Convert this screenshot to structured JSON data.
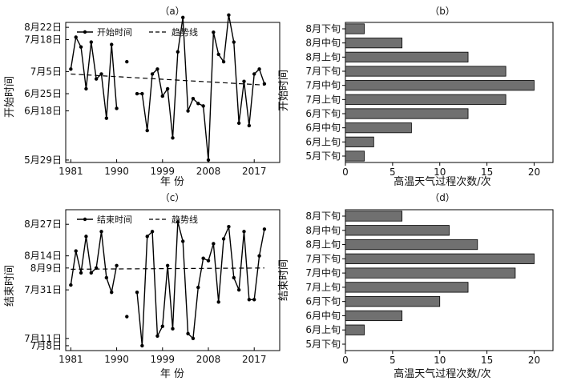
{
  "chart_data": [
    {
      "id": "a",
      "type": "line",
      "title": "（a）",
      "xlabel": "年  份",
      "ylabel": "开始时间",
      "xlim": [
        1980,
        2022
      ],
      "xticks": [
        1981,
        1990,
        1999,
        2008,
        2017
      ],
      "ylim": [
        149,
        206
      ],
      "yticks": [
        150,
        170,
        177,
        186,
        199,
        204
      ],
      "yticklabels": [
        "5月29日",
        "6月18日",
        "6月25日",
        "7月5日",
        "7月18日",
        "8月22日"
      ],
      "legend": {
        "placement": "top-left",
        "entries": [
          "开始时间",
          "趋势线"
        ]
      },
      "series": [
        {
          "name": "开始时间",
          "x": [
            1981,
            1982,
            1983,
            1984,
            1985,
            1986,
            1987,
            1988,
            1989,
            1990,
            null,
            1992,
            null,
            1994,
            1995,
            1996,
            1997,
            1998,
            1999,
            2000,
            2001,
            2002,
            2003,
            2004,
            2005,
            2006,
            2007,
            2008,
            2009,
            2010,
            2011,
            2012,
            2013,
            2014,
            2015,
            2016,
            2017,
            2018,
            2019
          ],
          "values": [
            187,
            200,
            196,
            179,
            198,
            183,
            185,
            167,
            197,
            171,
            null,
            190,
            null,
            177,
            177,
            162,
            185,
            187,
            176,
            179,
            159,
            194,
            208,
            170,
            175,
            173,
            172,
            150,
            202,
            193,
            190,
            209,
            198,
            165,
            182,
            164,
            185,
            187,
            181
          ]
        },
        {
          "name": "趋势线",
          "x": [
            1981,
            2019
          ],
          "values": [
            185,
            180.5
          ]
        }
      ]
    },
    {
      "id": "b",
      "type": "bar",
      "title": "（b）",
      "xlabel": "高温天气过程次数/次",
      "ylabel": "开始时间",
      "xlim": [
        0,
        22
      ],
      "xticks": [
        0,
        5,
        10,
        15,
        20
      ],
      "categories": [
        "8月下旬",
        "8月中旬",
        "8月上旬",
        "7月下旬",
        "7月中旬",
        "7月上旬",
        "6月下旬",
        "6月中旬",
        "6月上旬",
        "5月下旬"
      ],
      "values": [
        2,
        6,
        13,
        17,
        20,
        17,
        13,
        7,
        3,
        2
      ],
      "color": "#707070"
    },
    {
      "id": "c",
      "type": "line",
      "title": "（c）",
      "xlabel": "年  份",
      "ylabel": "结束时间",
      "xlim": [
        1980,
        2022
      ],
      "xticks": [
        1981,
        1990,
        1999,
        2008,
        2017
      ],
      "ylim": [
        187,
        245
      ],
      "yticks": [
        189,
        192,
        212,
        221,
        226,
        239
      ],
      "yticklabels": [
        "7月8日",
        "7月11日",
        "7月31日",
        "8月9日",
        "8月14日",
        "8月27日"
      ],
      "legend": {
        "placement": "top-left",
        "entries": [
          "结束时间",
          "趋势线"
        ]
      },
      "series": [
        {
          "name": "结束时间",
          "x": [
            1981,
            1982,
            1983,
            1984,
            1985,
            1986,
            1987,
            1988,
            1989,
            1990,
            null,
            1992,
            null,
            1994,
            1995,
            1996,
            1997,
            1998,
            1999,
            2000,
            2001,
            2002,
            2003,
            2004,
            2005,
            2006,
            2007,
            2008,
            2009,
            2010,
            2011,
            2012,
            2013,
            2014,
            2015,
            2016,
            2017,
            2018,
            2019
          ],
          "values": [
            214,
            228,
            219,
            234,
            219,
            221,
            236,
            217,
            211,
            222,
            null,
            201,
            null,
            211,
            189,
            234,
            236,
            193,
            197,
            222,
            196,
            240,
            232,
            194,
            192,
            213,
            225,
            224,
            231,
            207,
            233,
            238,
            217,
            212,
            236,
            208,
            208,
            226,
            237
          ]
        },
        {
          "name": "趋势线",
          "x": [
            1981,
            2019
          ],
          "values": [
            220.5,
            221
          ]
        }
      ]
    },
    {
      "id": "d",
      "type": "bar",
      "title": "（d）",
      "xlabel": "高温天气过程次数/次",
      "ylabel": "结束时间",
      "xlim": [
        0,
        22
      ],
      "xticks": [
        0,
        5,
        10,
        15,
        20
      ],
      "categories": [
        "8月下旬",
        "8月中旬",
        "8月上旬",
        "7月下旬",
        "7月中旬",
        "7月上旬",
        "6月下旬",
        "6月中旬",
        "6月上旬",
        "5月下旬"
      ],
      "values": [
        6,
        11,
        14,
        20,
        18,
        13,
        10,
        6,
        2,
        0
      ],
      "color": "#707070"
    }
  ]
}
